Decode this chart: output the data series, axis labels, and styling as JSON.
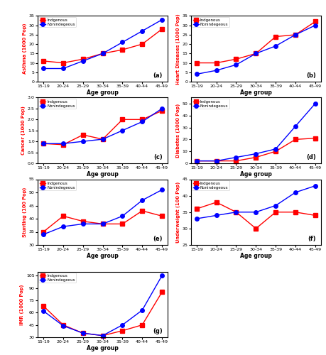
{
  "age_groups": [
    "15-19",
    "20-24",
    "25-29",
    "30-34",
    "35-39",
    "40-44",
    "45-49"
  ],
  "subplots": {
    "a": {
      "indigenous": [
        11,
        10,
        12,
        15,
        17,
        20,
        28
      ],
      "nonindigenous": [
        7,
        7,
        11,
        15,
        21,
        27,
        33
      ],
      "ylabel": "Asthma (1000 Pop)",
      "ylim": [
        0,
        35
      ],
      "yticks": [
        0,
        5,
        10,
        15,
        20,
        25,
        30,
        35
      ],
      "label": "(a)"
    },
    "b": {
      "indigenous": [
        10,
        10,
        12,
        15,
        24,
        25,
        32
      ],
      "nonindigenous": [
        4,
        6,
        9,
        15,
        19,
        25,
        30
      ],
      "ylabel": "Heart Diseases (1000 Pop)",
      "ylim": [
        0,
        35
      ],
      "yticks": [
        0,
        5,
        10,
        15,
        20,
        25,
        30,
        35
      ],
      "label": "(b)"
    },
    "c": {
      "indigenous": [
        0.9,
        0.85,
        1.3,
        1.1,
        2.0,
        2.0,
        2.4
      ],
      "nonindigenous": [
        0.9,
        0.9,
        1.0,
        1.1,
        1.5,
        1.9,
        2.5
      ],
      "ylabel": "Cancer (1000 Pop)",
      "ylim": [
        0.0,
        3.0
      ],
      "yticks": [
        0.0,
        0.5,
        1.0,
        1.5,
        2.0,
        2.5,
        3.0
      ],
      "label": "(c)"
    },
    "d": {
      "indigenous": [
        2,
        2,
        2,
        5,
        10,
        20,
        21
      ],
      "nonindigenous": [
        2,
        2,
        5,
        8,
        12,
        31,
        50
      ],
      "ylabel": "Diabetes (1000 Pop)",
      "ylim": [
        0,
        55
      ],
      "yticks": [
        0,
        10,
        20,
        30,
        40,
        50
      ],
      "label": "(d)"
    },
    "e": {
      "indigenous": [
        35,
        41,
        39,
        38,
        38,
        43,
        41
      ],
      "nonindigenous": [
        34,
        37,
        38,
        38,
        41,
        47,
        51
      ],
      "ylabel": "Stunting (100 Pop)",
      "ylim": [
        30,
        55
      ],
      "yticks": [
        30,
        35,
        40,
        45,
        50,
        55
      ],
      "label": "(e)"
    },
    "f": {
      "indigenous": [
        36,
        38,
        35,
        30,
        35,
        35,
        34
      ],
      "nonindigenous": [
        33,
        34,
        35,
        35,
        37,
        41,
        43
      ],
      "ylabel": "Underweight (100 Pop)",
      "ylim": [
        25,
        45
      ],
      "yticks": [
        25,
        30,
        35,
        40,
        45
      ],
      "label": "(f)"
    },
    "g": {
      "indigenous": [
        68,
        45,
        35,
        32,
        38,
        45,
        85
      ],
      "nonindigenous": [
        62,
        44,
        35,
        32,
        45,
        63,
        105
      ],
      "ylabel": "IMR (1000 Pop)",
      "ylim": [
        30,
        110
      ],
      "yticks": [
        30,
        45,
        60,
        75,
        90,
        105
      ],
      "label": "(g)"
    }
  },
  "xlabel": "Age group",
  "ind_color": "red",
  "non_color": "blue",
  "ind_label": "Indgenous",
  "non_label": "Nonindegeous",
  "markersize": 4,
  "linewidth": 1.0
}
